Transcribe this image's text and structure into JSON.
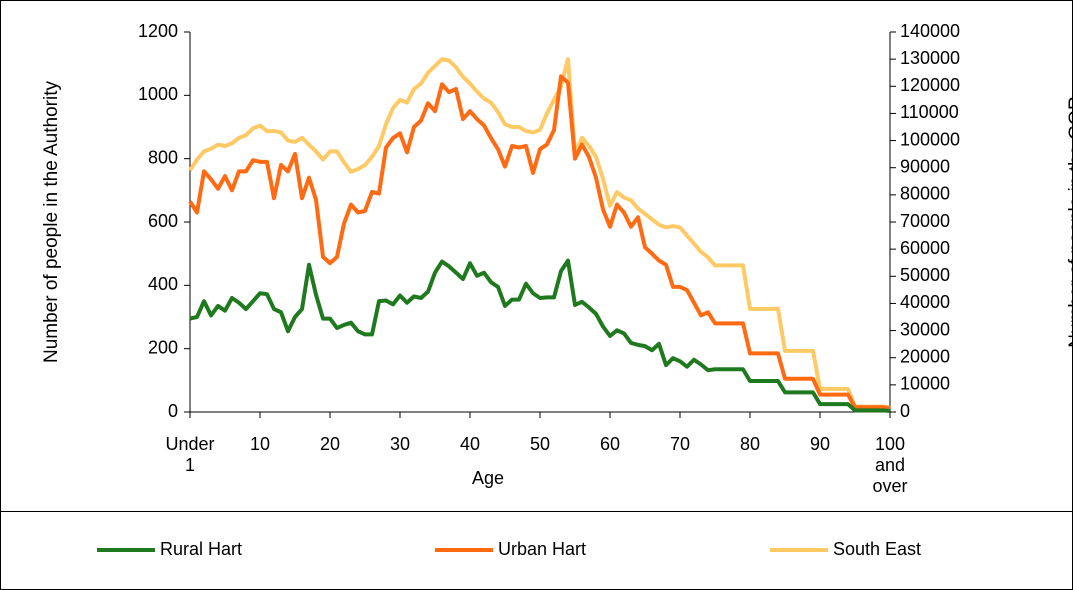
{
  "chart_data": {
    "type": "line",
    "xlabel": "Age",
    "ylabel": "Number of people in the Authority",
    "y2label": "Number of people in the GOR",
    "categories": [
      "Under 1",
      null,
      null,
      null,
      null,
      null,
      null,
      null,
      null,
      null,
      "10",
      null,
      null,
      null,
      null,
      null,
      null,
      null,
      null,
      null,
      "20",
      null,
      null,
      null,
      null,
      null,
      null,
      null,
      null,
      null,
      "30",
      null,
      null,
      null,
      null,
      null,
      null,
      null,
      null,
      null,
      "40",
      null,
      null,
      null,
      null,
      null,
      null,
      null,
      null,
      null,
      "50",
      null,
      null,
      null,
      null,
      null,
      null,
      null,
      null,
      null,
      "60",
      null,
      null,
      null,
      null,
      null,
      null,
      null,
      null,
      null,
      "70",
      null,
      null,
      null,
      null,
      null,
      null,
      null,
      null,
      null,
      "80",
      null,
      null,
      null,
      null,
      null,
      null,
      null,
      null,
      null,
      "90",
      null,
      null,
      null,
      null,
      null,
      null,
      null,
      null,
      null,
      "100 and over"
    ],
    "series": [
      {
        "name": "Rural Hart",
        "color": "#1f7a1f",
        "axis": "y",
        "values": [
          295,
          300,
          350,
          305,
          335,
          320,
          360,
          345,
          325,
          350,
          375,
          372,
          325,
          315,
          255,
          300,
          325,
          465,
          370,
          295,
          295,
          265,
          275,
          282,
          255,
          245,
          245,
          350,
          352,
          340,
          368,
          345,
          365,
          360,
          380,
          440,
          475,
          460,
          440,
          420,
          470,
          430,
          440,
          410,
          395,
          335,
          355,
          355,
          405,
          375,
          360,
          362,
          362,
          445,
          478,
          338,
          348,
          330,
          310,
          270,
          240,
          258,
          248,
          218,
          212,
          208,
          195,
          215,
          148,
          170,
          160,
          143,
          165,
          150,
          132,
          135,
          135,
          135,
          135,
          135,
          98,
          98,
          98,
          98,
          98,
          62,
          62,
          62,
          62,
          62,
          25,
          25,
          25,
          25,
          25,
          5,
          5,
          5,
          5,
          5,
          3
        ]
      },
      {
        "name": "Urban Hart",
        "color": "#ff6a13",
        "axis": "y",
        "values": [
          665,
          630,
          760,
          735,
          705,
          745,
          700,
          760,
          760,
          795,
          790,
          790,
          675,
          780,
          760,
          815,
          675,
          740,
          670,
          490,
          470,
          490,
          595,
          655,
          630,
          635,
          695,
          690,
          835,
          865,
          880,
          820,
          900,
          920,
          975,
          950,
          1035,
          1010,
          1020,
          925,
          950,
          925,
          905,
          865,
          830,
          775,
          840,
          835,
          840,
          755,
          830,
          845,
          890,
          1060,
          1040,
          800,
          845,
          805,
          740,
          640,
          585,
          655,
          630,
          585,
          615,
          520,
          500,
          478,
          465,
          395,
          395,
          385,
          345,
          305,
          315,
          280,
          280,
          280,
          280,
          280,
          185,
          185,
          185,
          185,
          185,
          105,
          105,
          105,
          105,
          105,
          55,
          55,
          55,
          55,
          55,
          15,
          15,
          15,
          15,
          15,
          12
        ]
      },
      {
        "name": "South East",
        "color": "#ffc966",
        "axis": "y2",
        "values": [
          89000,
          93000,
          96000,
          97000,
          98500,
          98000,
          99000,
          101000,
          102000,
          104500,
          105500,
          103500,
          103500,
          103000,
          100000,
          99500,
          101000,
          98500,
          96000,
          93000,
          96000,
          96000,
          92000,
          88500,
          89500,
          91000,
          94000,
          98000,
          106000,
          112000,
          115000,
          114000,
          119000,
          121000,
          125000,
          127500,
          130000,
          129500,
          127000,
          123500,
          121000,
          118000,
          115500,
          114000,
          110500,
          106000,
          105000,
          105000,
          103500,
          103000,
          104000,
          110000,
          115000,
          120000,
          130000,
          95000,
          101000,
          98000,
          94000,
          86000,
          76000,
          81000,
          79000,
          78000,
          75000,
          73000,
          71000,
          69000,
          68000,
          68500,
          68000,
          65000,
          62000,
          59000,
          57000,
          54000,
          54000,
          54000,
          54000,
          54000,
          38000,
          38000,
          38000,
          38000,
          38000,
          22500,
          22500,
          22500,
          22500,
          22500,
          8500,
          8500,
          8500,
          8500,
          8500,
          2000,
          2000,
          2000,
          2000,
          2000,
          1500
        ]
      }
    ],
    "ylim": [
      0,
      1200
    ],
    "yticks": [
      0,
      200,
      400,
      600,
      800,
      1000,
      1200
    ],
    "y2lim": [
      0,
      140000
    ],
    "y2ticks": [
      0,
      10000,
      20000,
      30000,
      40000,
      50000,
      60000,
      70000,
      80000,
      90000,
      100000,
      110000,
      120000,
      130000,
      140000
    ],
    "legend": "bottom"
  }
}
